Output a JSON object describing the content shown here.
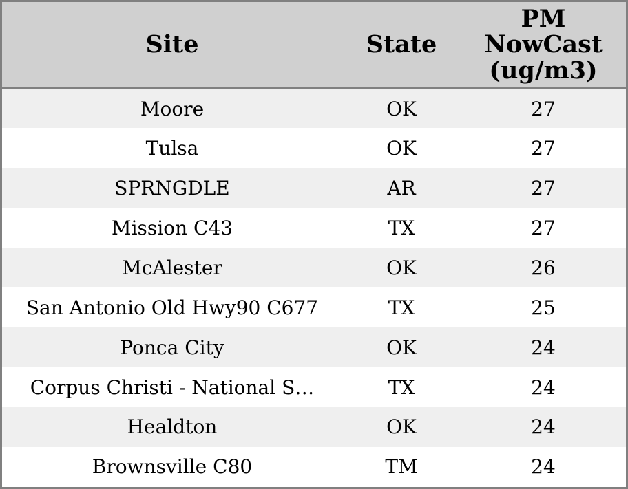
{
  "colors": {
    "border": "#808080",
    "header_bg": "#d0d0d0",
    "row_alt_bg": "#efefef",
    "row_bg": "#ffffff",
    "text": "#000000"
  },
  "chart_data": {
    "type": "table",
    "columns": [
      {
        "id": "site",
        "label": "Site",
        "display_label": "Site"
      },
      {
        "id": "state",
        "label": "State",
        "display_label": "State"
      },
      {
        "id": "pm_nowcast",
        "label": "PM NowCast (ug/m3)",
        "display_label": "PM\nNowCast\n(ug/m3)"
      }
    ],
    "rows": [
      {
        "site": "Moore",
        "state": "OK",
        "pm_nowcast": 27
      },
      {
        "site": "Tulsa",
        "state": "OK",
        "pm_nowcast": 27
      },
      {
        "site": "SPRNGDLE",
        "state": "AR",
        "pm_nowcast": 27
      },
      {
        "site": "Mission C43",
        "state": "TX",
        "pm_nowcast": 27
      },
      {
        "site": "McAlester",
        "state": "OK",
        "pm_nowcast": 26
      },
      {
        "site": "San Antonio Old Hwy90 C677",
        "state": "TX",
        "pm_nowcast": 25
      },
      {
        "site": "Ponca City",
        "state": "OK",
        "pm_nowcast": 24
      },
      {
        "site": "Corpus Christi - National S…",
        "state": "TX",
        "pm_nowcast": 24
      },
      {
        "site": "Healdton",
        "state": "OK",
        "pm_nowcast": 24
      },
      {
        "site": "Brownsville C80",
        "state": "TM",
        "pm_nowcast": 24
      }
    ]
  }
}
